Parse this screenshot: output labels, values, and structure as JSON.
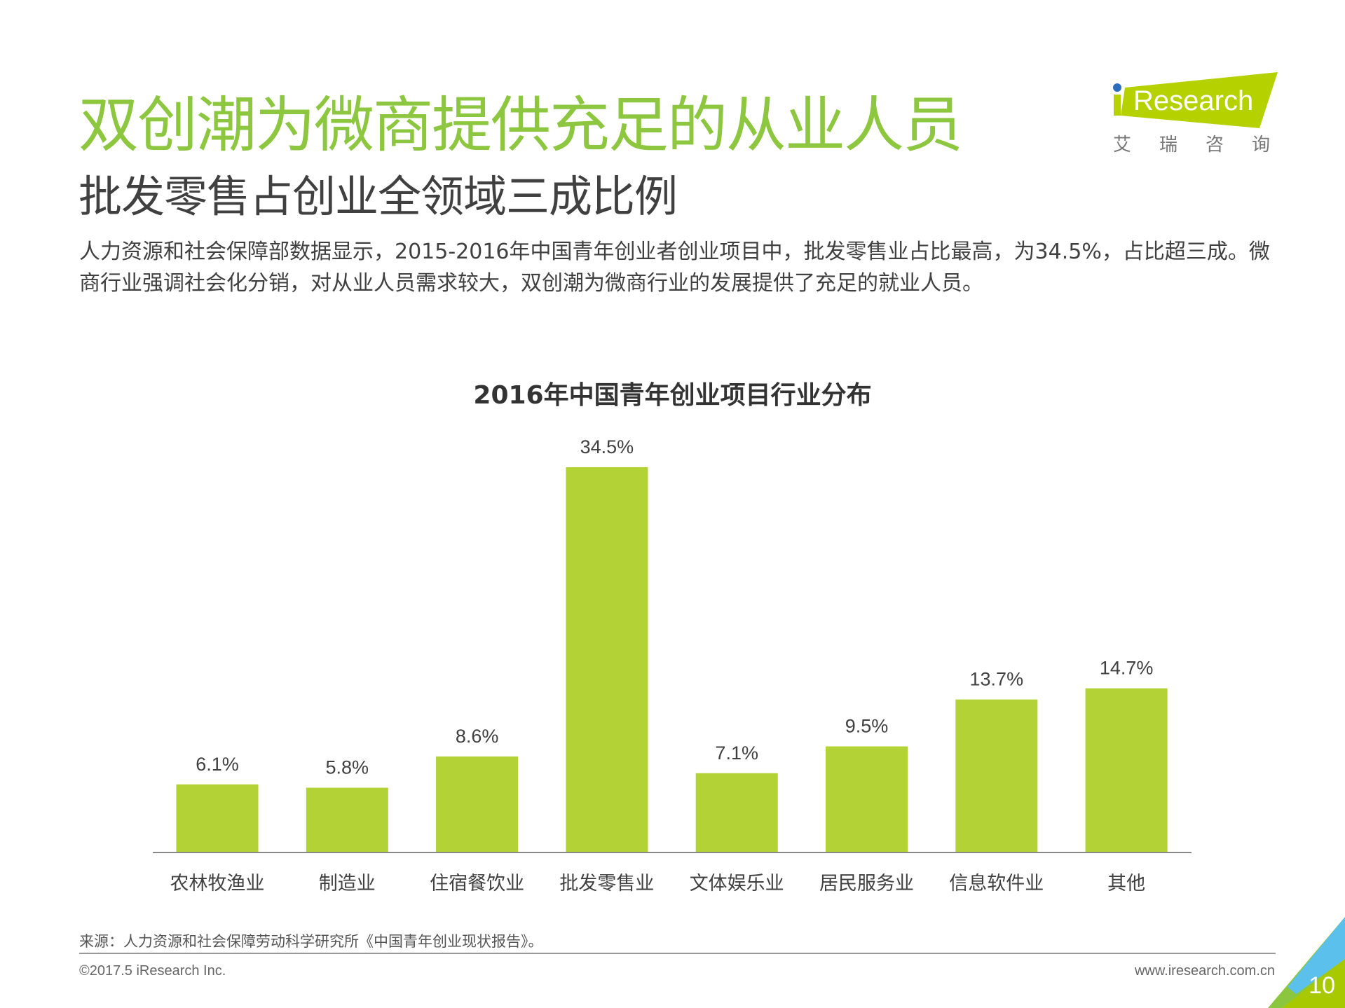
{
  "header": {
    "title": "双创潮为微商提供充足的从业人员",
    "subtitle": "批发零售占创业全领域三成比例",
    "body": "人力资源和社会保障部数据显示，2015-2016年中国青年创业者创业项目中，批发零售业占比最高，为34.5%，占比超三成。微商行业强调社会化分销，对从业人员需求较大，双创潮为微商行业的发展提供了充足的就业人员。"
  },
  "logo": {
    "text": "iResearch",
    "cn": "艾瑞咨询",
    "color": "#b5d200"
  },
  "chart_data": {
    "type": "bar",
    "title": "2016年中国青年创业项目行业分布",
    "categories": [
      "农林牧渔业",
      "制造业",
      "住宿餐饮业",
      "批发零售业",
      "文体娱乐业",
      "居民服务业",
      "信息软件业",
      "其他"
    ],
    "values": [
      6.1,
      5.8,
      8.6,
      34.5,
      7.1,
      9.5,
      13.7,
      14.7
    ],
    "value_labels": [
      "6.1%",
      "5.8%",
      "8.6%",
      "34.5%",
      "7.1%",
      "9.5%",
      "13.7%",
      "14.7%"
    ],
    "ylim": [
      0,
      34.5
    ],
    "grid": false,
    "bar_color": "#b2d235",
    "xlabel": "",
    "ylabel": ""
  },
  "footer": {
    "source": "来源：人力资源和社会保障劳动科学研究所《中国青年创业现状报告》。",
    "copyright": "©2017.5 iResearch Inc.",
    "url": "www.iresearch.com.cn",
    "page": "10"
  }
}
